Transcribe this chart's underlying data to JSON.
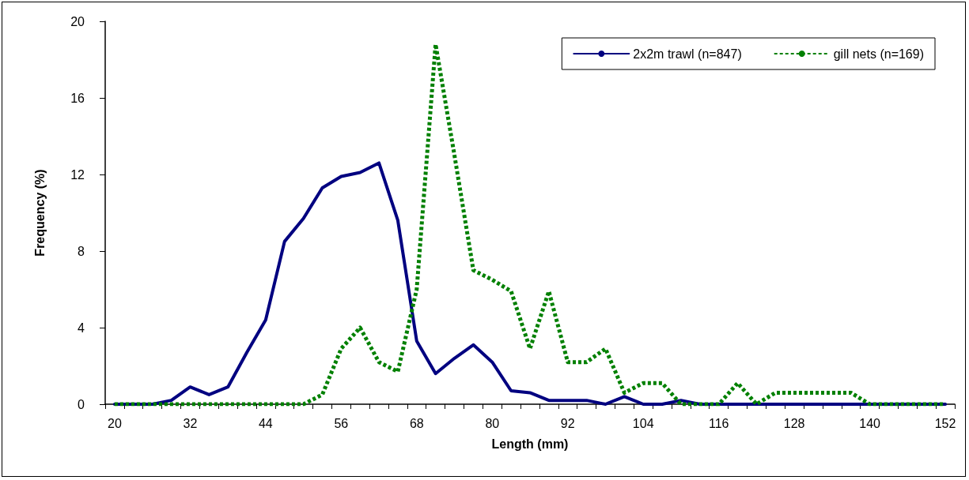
{
  "chart_data": {
    "type": "line",
    "xlabel": "Length (mm)",
    "ylabel": "Frequency (%)",
    "categories": [
      "20",
      null,
      null,
      null,
      "32",
      null,
      null,
      null,
      "44",
      null,
      null,
      null,
      "56",
      null,
      null,
      null,
      "68",
      null,
      null,
      null,
      "80",
      null,
      null,
      null,
      "92",
      null,
      null,
      null,
      "104",
      null,
      null,
      null,
      "116",
      null,
      null,
      null,
      "128",
      null,
      null,
      null,
      "140",
      null,
      null,
      null,
      "152"
    ],
    "series": [
      {
        "name": "2x2m trawl (n=847)",
        "color": "#000080",
        "line_style": "solid",
        "values": [
          0,
          0,
          0,
          0.2,
          0.9,
          0.5,
          0.9,
          2.7,
          4.4,
          8.5,
          9.7,
          11.3,
          11.9,
          12.1,
          12.6,
          9.6,
          3.3,
          1.6,
          2.4,
          3.1,
          2.2,
          0.7,
          0.6,
          0.2,
          0.2,
          0.2,
          0,
          0.4,
          0,
          0,
          0.2,
          0,
          0,
          0,
          0,
          0,
          0,
          0,
          0,
          0,
          0,
          0,
          0,
          0,
          0
        ]
      },
      {
        "name": "gill nets (n=169)",
        "color": "#008000",
        "line_style": "dotted",
        "values": [
          0,
          0,
          0,
          0,
          0,
          0,
          0,
          0,
          0,
          0,
          0,
          0.5,
          2.9,
          4,
          2.2,
          1.7,
          6,
          18.8,
          13,
          7,
          6.5,
          5.9,
          2.9,
          5.9,
          2.2,
          2.2,
          2.9,
          0.6,
          1.1,
          1.1,
          0,
          0,
          0,
          1.1,
          0,
          0.6,
          0.6,
          0.6,
          0.6,
          0.6,
          0,
          0,
          0,
          0,
          0
        ]
      }
    ],
    "ylim": [
      0,
      20
    ],
    "yticks": [
      0,
      4,
      8,
      12,
      16,
      20
    ],
    "grid": false,
    "legend": "top right",
    "marker": "none"
  }
}
